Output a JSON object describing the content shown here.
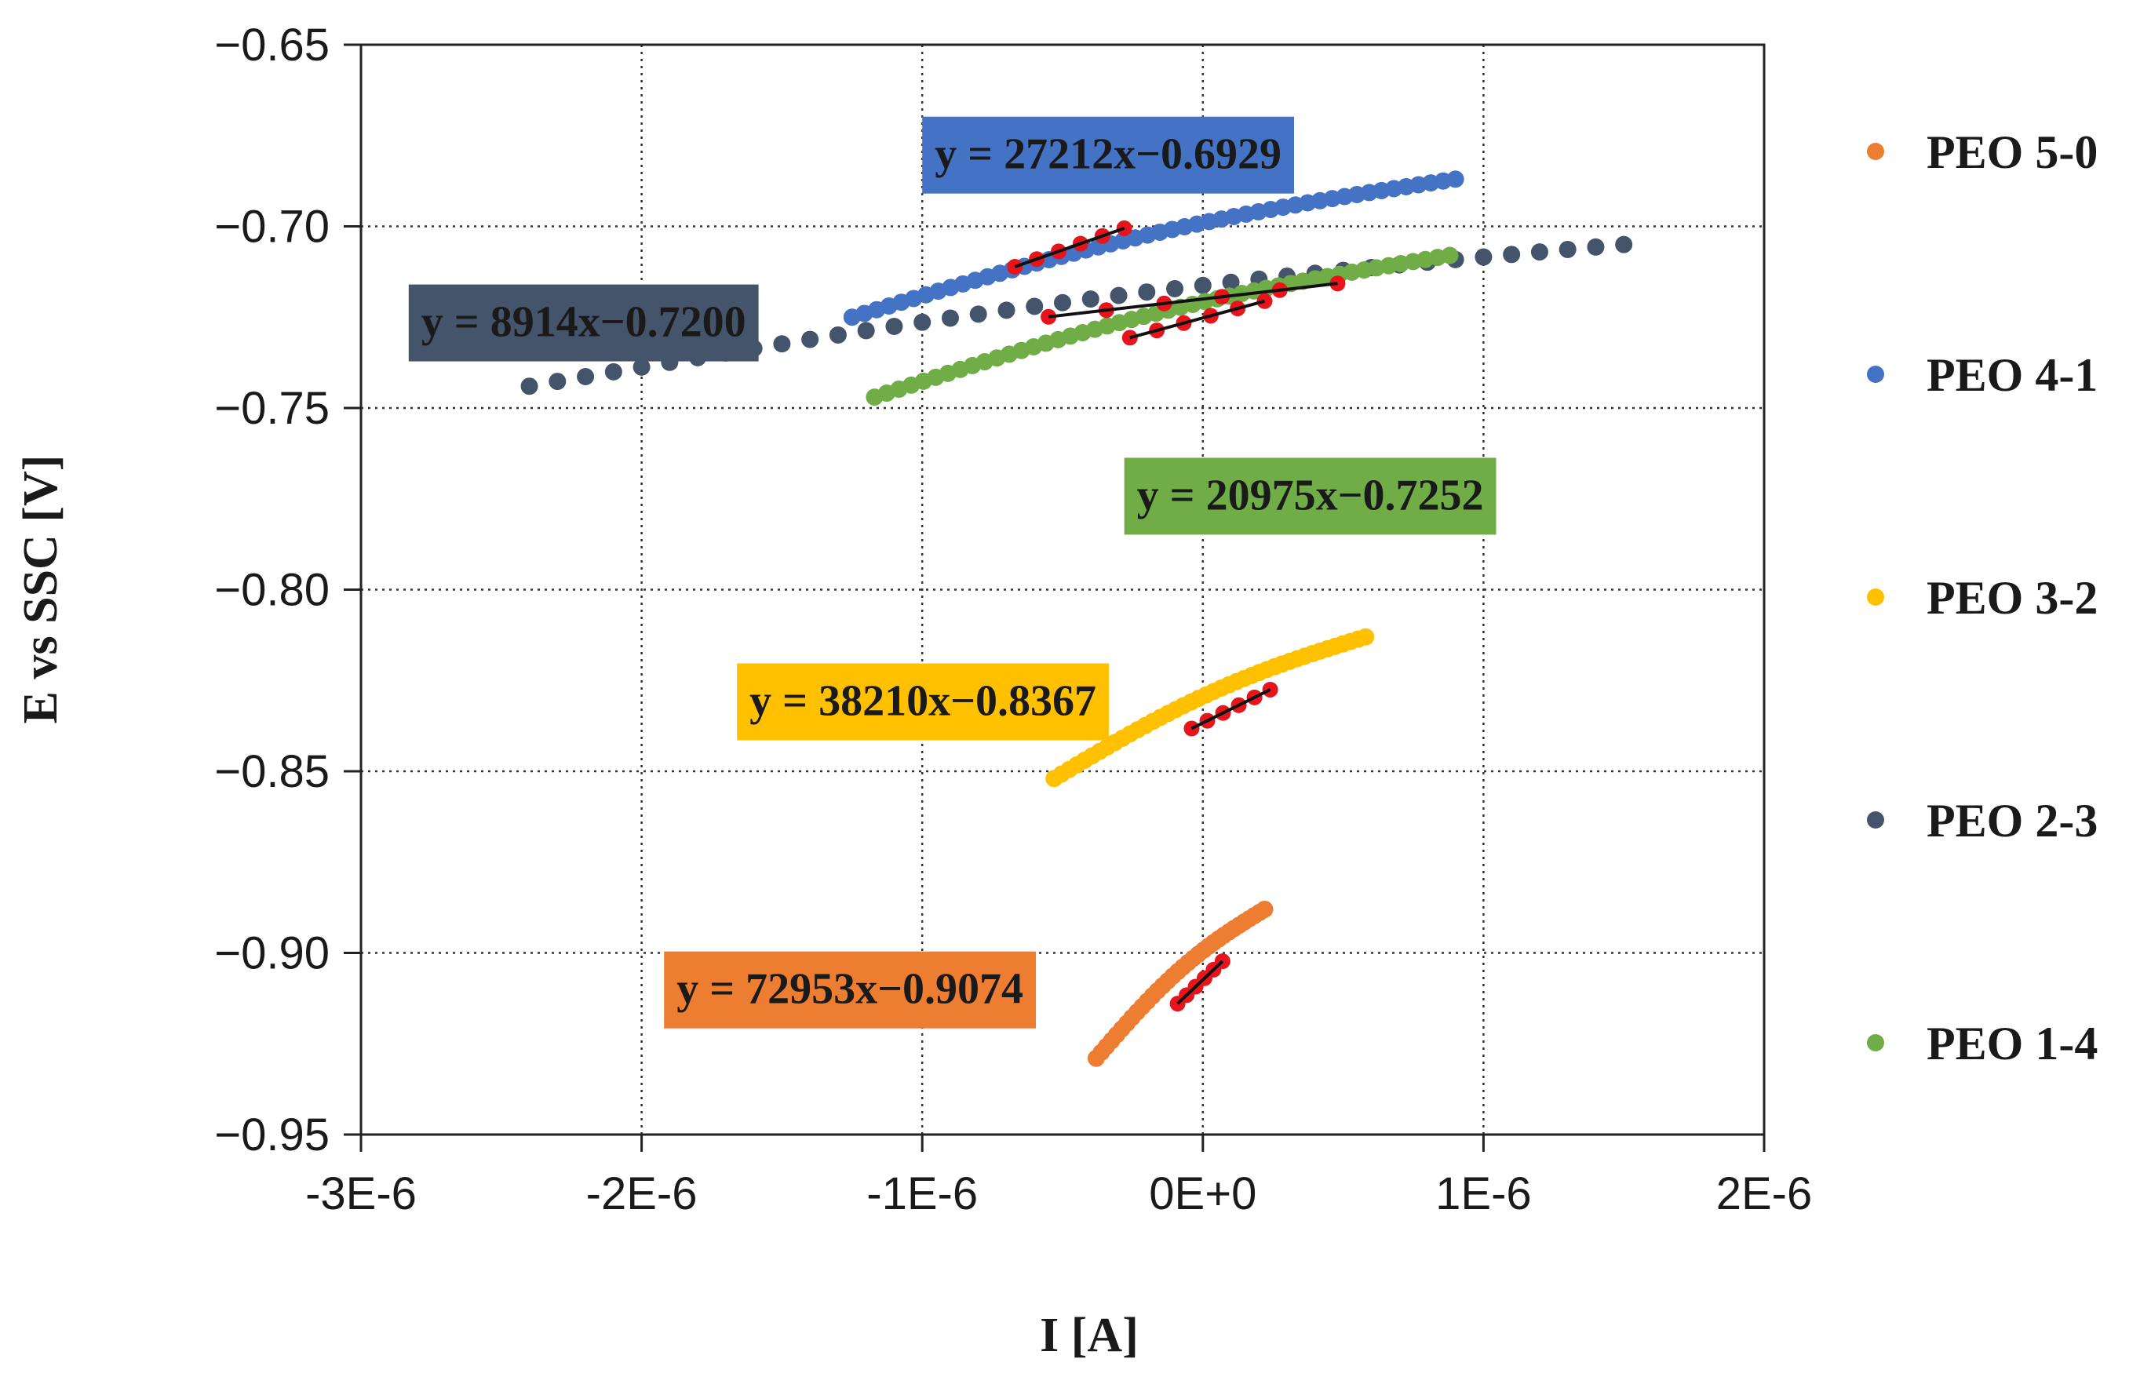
{
  "chart_data": {
    "type": "scatter",
    "title": "",
    "xlabel": "I [A]",
    "ylabel": "E vs SSC [V]",
    "xlim": [
      -3e-06,
      2e-06
    ],
    "ylim": [
      -0.95,
      -0.65
    ],
    "x_ticks": [
      -3e-06,
      -2e-06,
      -1e-06,
      0,
      1e-06,
      2e-06
    ],
    "x_tick_labels": [
      "-3E-6",
      "-2E-6",
      "-1E-6",
      "0E+0",
      "1E-6",
      "2E-6"
    ],
    "y_ticks": [
      -0.65,
      -0.7,
      -0.75,
      -0.8,
      -0.85,
      -0.9,
      -0.95
    ],
    "y_tick_labels": [
      "−0.65",
      "−0.70",
      "−0.75",
      "−0.80",
      "−0.85",
      "−0.90",
      "−0.95"
    ],
    "grid": "dotted",
    "legend_position": "right",
    "fit_color": "#e8141c",
    "fit_line_color": "#111111",
    "series": [
      {
        "name": "PEO 5-0",
        "color": "#ed7d31",
        "x_start": -3.8e-07,
        "x_end": 2.2e-07,
        "y_start": -0.929,
        "y_end": -0.888,
        "points": 34,
        "fit": {
          "slope": 72953,
          "intercept": -0.9074,
          "x_from": -9e-08,
          "x_to": 7e-08
        },
        "equation": "y = 72953x−0.9074"
      },
      {
        "name": "PEO 4-1",
        "color": "#4472c4",
        "x_start": -1.25e-06,
        "x_end": 9e-07,
        "y_start": -0.725,
        "y_end": -0.687,
        "points": 50,
        "fit": {
          "slope": 27212,
          "intercept": -0.6929,
          "x_from": -6.7e-07,
          "x_to": -2.8e-07
        },
        "equation": "y = 27212x−0.6929"
      },
      {
        "name": "PEO 3-2",
        "color": "#ffc000",
        "x_start": -5.3e-07,
        "x_end": 5.8e-07,
        "y_start": -0.852,
        "y_end": -0.813,
        "points": 42,
        "fit": {
          "slope": 38210,
          "intercept": -0.8367,
          "x_from": -4e-08,
          "x_to": 2.4e-07
        },
        "equation": "y = 38210x−0.8367"
      },
      {
        "name": "PEO 2-3",
        "color": "#44546a",
        "x_start": -2.4e-06,
        "x_end": 1.5e-06,
        "y_start": -0.744,
        "y_end": -0.705,
        "points": 40,
        "fit": {
          "slope": 8914,
          "intercept": -0.72,
          "x_from": -5.5e-07,
          "x_to": 4.8e-07
        },
        "equation": "y = 8914x−0.7200"
      },
      {
        "name": "PEO 1-4",
        "color": "#70ad47",
        "x_start": -1.17e-06,
        "x_end": 8.8e-07,
        "y_start": -0.747,
        "y_end": -0.708,
        "points": 48,
        "fit": {
          "slope": 20975,
          "intercept": -0.7252,
          "x_from": -2.6e-07,
          "x_to": 2.2e-07
        },
        "equation": "y = 20975x−0.7252"
      }
    ],
    "equation_labels": [
      {
        "series": "PEO 4-1",
        "text": "y = 27212x−0.6929",
        "color": "#4472c4",
        "anchor_x": -1e-06,
        "anchor_y": -0.6698
      },
      {
        "series": "PEO 2-3",
        "text": "y = 8914x−0.7200",
        "color": "#44546a",
        "anchor_x": -2.83e-06,
        "anchor_y": -0.716
      },
      {
        "series": "PEO 1-4",
        "text": "y = 20975x−0.7252",
        "color": "#70ad47",
        "anchor_x": -2.8e-07,
        "anchor_y": -0.7637
      },
      {
        "series": "PEO 3-2",
        "text": "y = 38210x−0.8367",
        "color": "#ffc000",
        "anchor_x": -1.66e-06,
        "anchor_y": -0.8203
      },
      {
        "series": "PEO 5-0",
        "text": "y = 72953x−0.9074",
        "color": "#ed7d31",
        "anchor_x": -1.92e-06,
        "anchor_y": -0.8996
      }
    ]
  }
}
